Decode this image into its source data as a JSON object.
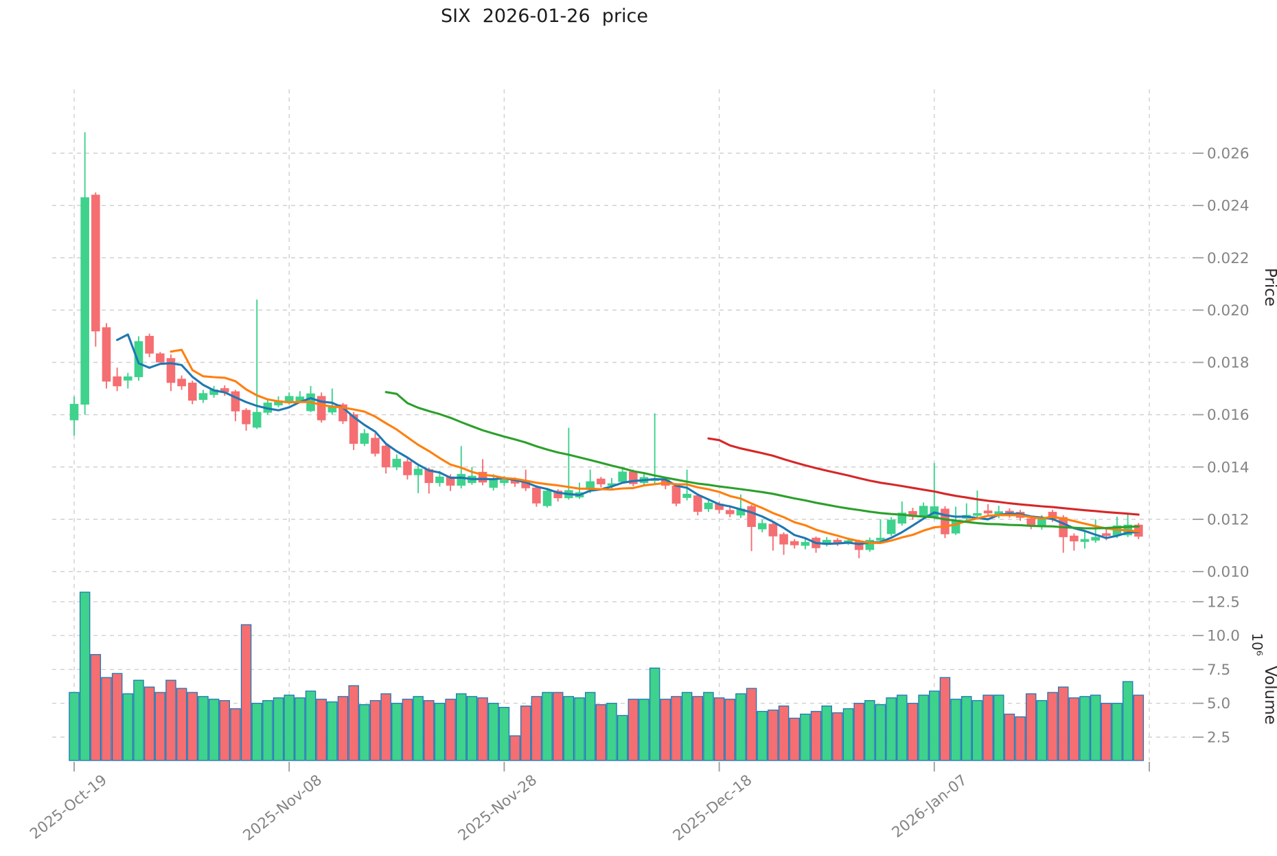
{
  "title": "SIX  2026-01-26  price",
  "price_axis": {
    "label": "Price",
    "ticks": [
      0.026,
      0.024,
      0.022,
      0.02,
      0.018,
      0.016,
      0.014,
      0.012,
      0.01
    ]
  },
  "volume_axis": {
    "label": "Volume",
    "exponent": "10⁶",
    "ticks": [
      12.5,
      10.0,
      7.5,
      5.0,
      2.5
    ]
  },
  "x_axis": {
    "tick_labels": [
      {
        "index": 0,
        "label": "2025-Oct-19"
      },
      {
        "index": 20,
        "label": "2025-Nov-08"
      },
      {
        "index": 40,
        "label": "2025-Nov-28"
      },
      {
        "index": 60,
        "label": "2025-Dec-18"
      },
      {
        "index": 80,
        "label": "2026-Jan-07"
      }
    ],
    "unlabeled_gridline_index": 100
  },
  "colors": {
    "up": "#3ed28c",
    "down": "#f56e71",
    "volume_edge": "#1f77b4",
    "ma5": "#1f77b4",
    "ma10": "#ff7f0e",
    "ma30": "#2ca02c",
    "ma60": "#d62728",
    "grid": "#d0d0d0",
    "tick_text": "#848484",
    "axis_label_text": "#2b2b2b",
    "title_text": "#1c1c1c",
    "background": "#ffffff"
  },
  "chart_data": {
    "type": "candlestick",
    "title": "SIX  2026-01-26  price",
    "ylabel": "Price",
    "ylabel_lower": "Volume",
    "volume_unit_exponent": 6,
    "price_ylim": [
      0.01,
      0.0285
    ],
    "volume_tick_range": [
      2.5,
      12.5
    ],
    "grid": "dashed",
    "moving_averages": [
      {
        "name": "ma5",
        "window": 5,
        "color": "#1f77b4"
      },
      {
        "name": "ma10",
        "window": 10,
        "color": "#ff7f0e"
      },
      {
        "name": "ma30",
        "window": 30,
        "color": "#2ca02c"
      },
      {
        "name": "ma60",
        "window": 60,
        "color": "#d62728"
      }
    ],
    "dates": [
      "2025-10-19",
      "2025-10-20",
      "2025-10-21",
      "2025-10-22",
      "2025-10-23",
      "2025-10-24",
      "2025-10-25",
      "2025-10-26",
      "2025-10-27",
      "2025-10-28",
      "2025-10-29",
      "2025-10-30",
      "2025-10-31",
      "2025-11-01",
      "2025-11-02",
      "2025-11-03",
      "2025-11-04",
      "2025-11-05",
      "2025-11-06",
      "2025-11-07",
      "2025-11-08",
      "2025-11-09",
      "2025-11-10",
      "2025-11-11",
      "2025-11-12",
      "2025-11-13",
      "2025-11-14",
      "2025-11-15",
      "2025-11-16",
      "2025-11-17",
      "2025-11-18",
      "2025-11-19",
      "2025-11-20",
      "2025-11-21",
      "2025-11-22",
      "2025-11-23",
      "2025-11-24",
      "2025-11-25",
      "2025-11-26",
      "2025-11-27",
      "2025-11-28",
      "2025-11-29",
      "2025-11-30",
      "2025-12-01",
      "2025-12-02",
      "2025-12-03",
      "2025-12-04",
      "2025-12-05",
      "2025-12-06",
      "2025-12-07",
      "2025-12-08",
      "2025-12-09",
      "2025-12-10",
      "2025-12-11",
      "2025-12-12",
      "2025-12-13",
      "2025-12-14",
      "2025-12-15",
      "2025-12-16",
      "2025-12-17",
      "2025-12-18",
      "2025-12-19",
      "2025-12-20",
      "2025-12-21",
      "2025-12-22",
      "2025-12-23",
      "2025-12-24",
      "2025-12-25",
      "2025-12-26",
      "2025-12-27",
      "2025-12-28",
      "2025-12-29",
      "2025-12-30",
      "2025-12-31",
      "2026-01-01",
      "2026-01-02",
      "2026-01-03",
      "2026-01-04",
      "2026-01-05",
      "2026-01-06",
      "2026-01-07",
      "2026-01-08",
      "2026-01-09",
      "2026-01-10",
      "2026-01-11",
      "2026-01-12",
      "2026-01-13",
      "2026-01-14",
      "2026-01-15",
      "2026-01-16",
      "2026-01-17",
      "2026-01-18",
      "2026-01-19",
      "2026-01-20",
      "2026-01-21",
      "2026-01-22",
      "2026-01-23",
      "2026-01-24",
      "2026-01-25",
      "2026-01-26"
    ],
    "open": [
      0.0158,
      0.0164,
      0.0244,
      0.01933,
      0.01745,
      0.01732,
      0.01745,
      0.019,
      0.01833,
      0.01815,
      0.01736,
      0.01721,
      0.01658,
      0.01677,
      0.017,
      0.01688,
      0.01617,
      0.01552,
      0.01609,
      0.01637,
      0.01649,
      0.01652,
      0.01615,
      0.0167,
      0.0161,
      0.01638,
      0.016,
      0.0149,
      0.0151,
      0.0148,
      0.014,
      0.0142,
      0.0137,
      0.0139,
      0.0134,
      0.01362,
      0.0133,
      0.0134,
      0.0138,
      0.01322,
      0.0134,
      0.0135,
      0.01348,
      0.0132,
      0.01252,
      0.01308,
      0.01282,
      0.01285,
      0.01313,
      0.01354,
      0.0133,
      0.01344,
      0.01381,
      0.0134,
      0.01348,
      0.0135,
      0.01327,
      0.01283,
      0.0129,
      0.0124,
      0.01258,
      0.01234,
      0.01216,
      0.01249,
      0.01163,
      0.01181,
      0.01142,
      0.01115,
      0.011,
      0.01128,
      0.01105,
      0.0112,
      0.01112,
      0.01113,
      0.01084,
      0.0112,
      0.01145,
      0.01185,
      0.0123,
      0.01212,
      0.0121,
      0.01239,
      0.01147,
      0.01204,
      0.01215,
      0.01232,
      0.01213,
      0.01231,
      0.01227,
      0.01202,
      0.01172,
      0.01227,
      0.01207,
      0.01136,
      0.01115,
      0.0112,
      0.01145,
      0.0114,
      0.0114,
      0.01178
    ],
    "high": [
      0.0167,
      0.0268,
      0.0245,
      0.0195,
      0.0178,
      0.0176,
      0.019,
      0.0191,
      0.0184,
      0.0183,
      0.0175,
      0.0173,
      0.01695,
      0.0171,
      0.01712,
      0.01695,
      0.01625,
      0.0204,
      0.0166,
      0.0167,
      0.01685,
      0.0169,
      0.0171,
      0.01685,
      0.017,
      0.01645,
      0.0161,
      0.01545,
      0.01528,
      0.01485,
      0.01448,
      0.01432,
      0.01405,
      0.01398,
      0.01385,
      0.01372,
      0.0148,
      0.014,
      0.0143,
      0.01372,
      0.01366,
      0.0136,
      0.0139,
      0.0133,
      0.0132,
      0.01315,
      0.0155,
      0.0134,
      0.0139,
      0.01362,
      0.01358,
      0.01392,
      0.0139,
      0.0138,
      0.01605,
      0.01358,
      0.01338,
      0.0139,
      0.01298,
      0.0128,
      0.01268,
      0.01246,
      0.01295,
      0.01255,
      0.01198,
      0.01188,
      0.0115,
      0.01124,
      0.01126,
      0.01134,
      0.01132,
      0.01128,
      0.0113,
      0.01122,
      0.0113,
      0.012,
      0.01208,
      0.01268,
      0.01244,
      0.01264,
      0.01415,
      0.0125,
      0.01248,
      0.01261,
      0.0131,
      0.01258,
      0.01252,
      0.01242,
      0.01236,
      0.01212,
      0.01216,
      0.01236,
      0.01216,
      0.01146,
      0.01152,
      0.012,
      0.01162,
      0.0121,
      0.0122,
      0.01186
    ],
    "low": [
      0.0152,
      0.016,
      0.0186,
      0.017,
      0.0169,
      0.017,
      0.0173,
      0.0182,
      0.018,
      0.0169,
      0.01695,
      0.0164,
      0.01645,
      0.01665,
      0.01672,
      0.01575,
      0.01539,
      0.01545,
      0.016,
      0.01628,
      0.0164,
      0.01645,
      0.0161,
      0.0157,
      0.016,
      0.01565,
      0.01465,
      0.0148,
      0.0144,
      0.01375,
      0.01388,
      0.01352,
      0.013,
      0.01298,
      0.01325,
      0.01308,
      0.01318,
      0.01332,
      0.0133,
      0.0131,
      0.01328,
      0.01324,
      0.01308,
      0.01248,
      0.01245,
      0.01268,
      0.01275,
      0.01278,
      0.013,
      0.01322,
      0.01316,
      0.01338,
      0.01326,
      0.0133,
      0.01338,
      0.01315,
      0.0125,
      0.01272,
      0.01215,
      0.01228,
      0.01222,
      0.01208,
      0.01205,
      0.01078,
      0.0115,
      0.0108,
      0.01064,
      0.01088,
      0.01085,
      0.01072,
      0.01096,
      0.01098,
      0.01102,
      0.01051,
      0.01076,
      0.01112,
      0.01136,
      0.01176,
      0.01198,
      0.01202,
      0.012,
      0.01128,
      0.0114,
      0.01196,
      0.01206,
      0.01212,
      0.01204,
      0.01206,
      0.01194,
      0.01162,
      0.0116,
      0.0119,
      0.01072,
      0.0108,
      0.01088,
      0.0111,
      0.0112,
      0.01128,
      0.01132,
      0.01124
    ],
    "close": [
      0.0164,
      0.0243,
      0.0192,
      0.01728,
      0.0171,
      0.01745,
      0.0188,
      0.01835,
      0.01801,
      0.01723,
      0.0171,
      0.01655,
      0.01681,
      0.01695,
      0.01686,
      0.01614,
      0.01565,
      0.01609,
      0.01645,
      0.01652,
      0.0167,
      0.01668,
      0.0168,
      0.0158,
      0.0163,
      0.01576,
      0.0149,
      0.01528,
      0.01452,
      0.014,
      0.0143,
      0.0137,
      0.01392,
      0.0134,
      0.01362,
      0.0133,
      0.01372,
      0.01365,
      0.01342,
      0.01356,
      0.0135,
      0.01338,
      0.0132,
      0.01262,
      0.01308,
      0.01282,
      0.0131,
      0.01302,
      0.01344,
      0.01335,
      0.01336,
      0.01381,
      0.01336,
      0.0136,
      0.01355,
      0.0133,
      0.01261,
      0.01296,
      0.0123,
      0.01262,
      0.01237,
      0.01221,
      0.01239,
      0.01172,
      0.01184,
      0.01136,
      0.01105,
      0.01102,
      0.01112,
      0.01091,
      0.0112,
      0.01112,
      0.01118,
      0.01084,
      0.0112,
      0.01128,
      0.01197,
      0.01224,
      0.01212,
      0.0125,
      0.01248,
      0.01144,
      0.01195,
      0.01215,
      0.01222,
      0.01224,
      0.01229,
      0.01219,
      0.01207,
      0.01175,
      0.01202,
      0.01202,
      0.01133,
      0.01117,
      0.01123,
      0.01131,
      0.01138,
      0.01175,
      0.01178,
      0.01135
    ],
    "volume_millions": [
      5.8,
      13.2,
      8.6,
      6.9,
      7.2,
      5.7,
      6.7,
      6.2,
      5.8,
      6.7,
      6.1,
      5.8,
      5.5,
      5.3,
      5.2,
      4.6,
      10.8,
      5.0,
      5.2,
      5.4,
      5.6,
      5.4,
      5.9,
      5.3,
      5.1,
      5.5,
      6.3,
      4.9,
      5.2,
      5.7,
      5.0,
      5.3,
      5.5,
      5.2,
      5.0,
      5.3,
      5.7,
      5.5,
      5.4,
      5.0,
      4.7,
      2.6,
      4.8,
      5.5,
      5.8,
      5.8,
      5.5,
      5.4,
      5.8,
      4.9,
      5.0,
      4.1,
      5.3,
      5.3,
      7.6,
      5.3,
      5.5,
      5.8,
      5.5,
      5.8,
      5.4,
      5.3,
      5.7,
      6.1,
      4.4,
      4.5,
      4.8,
      3.9,
      4.2,
      4.4,
      4.8,
      4.3,
      4.6,
      5.0,
      5.2,
      4.9,
      5.4,
      5.6,
      5.0,
      5.6,
      5.9,
      6.9,
      5.3,
      5.5,
      5.2,
      5.6,
      5.6,
      4.2,
      4.0,
      5.7,
      5.2,
      5.8,
      6.2,
      5.4,
      5.5,
      5.6,
      5.0,
      5.0,
      6.6,
      5.6
    ]
  }
}
